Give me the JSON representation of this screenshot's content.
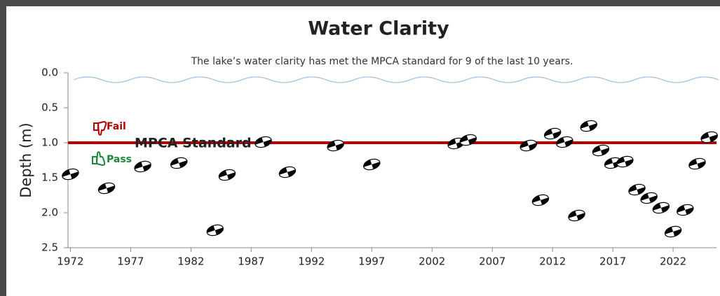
{
  "chart_data": {
    "type": "scatter",
    "title": "Water Clarity",
    "subtitle": "The lake’s water clarity has met the MPCA standard for 9 of the last 10 years.",
    "y_label": "Depth  (m)",
    "x": [
      1972,
      1975,
      1978,
      1981,
      1984,
      1985,
      1988,
      1990,
      1994,
      1997,
      2004,
      2005,
      2010,
      2011,
      2012,
      2013,
      2014,
      2015,
      2016,
      2017,
      2018,
      2019,
      2020,
      2021,
      2022,
      2023,
      2024,
      2025
    ],
    "values": [
      1.45,
      1.65,
      1.34,
      1.29,
      2.25,
      1.46,
      0.99,
      1.42,
      1.04,
      1.31,
      1.01,
      0.96,
      1.04,
      1.82,
      0.87,
      0.99,
      2.04,
      0.76,
      1.11,
      1.29,
      1.27,
      1.67,
      1.79,
      1.93,
      2.27,
      1.96,
      1.3,
      0.92
    ],
    "xlim": [
      1971.8,
      2025.6
    ],
    "xticks": [
      1972,
      1977,
      1982,
      1987,
      1992,
      1997,
      2002,
      2007,
      2012,
      2017,
      2022
    ],
    "ylim": [
      0,
      2.5
    ],
    "yticks": [
      {
        "value": 0,
        "label": "0.0"
      },
      {
        "value": 0.5,
        "label": "0.5"
      },
      {
        "value": 1,
        "label": "1.0"
      },
      {
        "value": 1.5,
        "label": "1.5"
      },
      {
        "value": 2,
        "label": "2.0"
      },
      {
        "value": 2.5,
        "label": "2.5"
      }
    ],
    "y_inverted": true,
    "standard": {
      "value": 1,
      "label": "MPCA Standard",
      "color": "#b00000"
    },
    "fail_label": "Fail",
    "pass_label": "Pass"
  }
}
